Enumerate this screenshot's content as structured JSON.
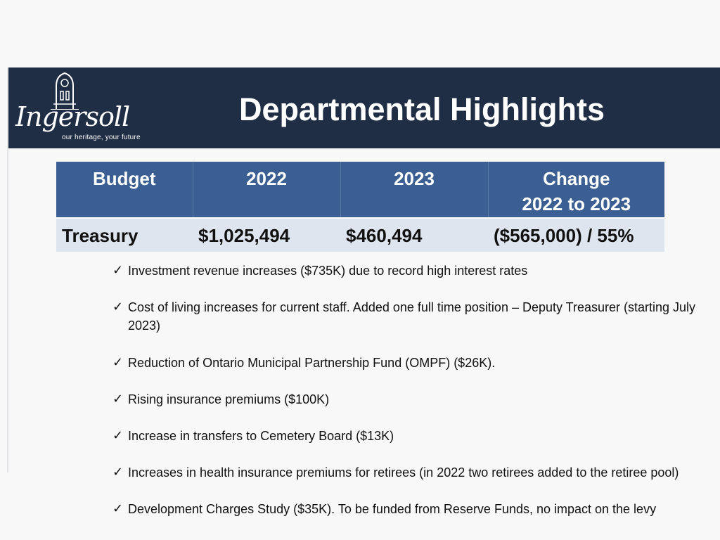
{
  "logo": {
    "name": "Ingersoll",
    "tagline": "our heritage, your future"
  },
  "title": "Departmental Highlights",
  "table": {
    "headers": [
      "Budget",
      "2022",
      "2023",
      "Change\n2022 to 2023"
    ],
    "header_change_line1": "Change",
    "header_change_line2": "2022 to 2023",
    "row": {
      "budget": "Treasury",
      "y2022": "$1,025,494",
      "y2023": "$460,494",
      "change": "($565,000) / 55%"
    }
  },
  "bullets": [
    {
      "text": "Investment revenue increases ($735K) due to record high interest rates"
    },
    {
      "text": "Cost of living increases for current staff. Added one full time position – Deputy Treasurer (starting July 2023)"
    },
    {
      "text": "Reduction of Ontario Municipal Partnership Fund (OMPF) ($26K)."
    },
    {
      "text": "Rising insurance premiums ($100K)"
    },
    {
      "text": "Increase in transfers to Cemetery Board ($13K)"
    },
    {
      "text": "Increases in health insurance premiums for retirees (in 2022 two retirees added to the retiree pool)"
    },
    {
      "text": "Development Charges Study ($35K). To be funded from Reserve Funds, no impact on the levy"
    }
  ],
  "check_glyph": "✓",
  "colors": {
    "banner": "#1f2d45",
    "table_header": "#3b5f92",
    "table_row": "#dfe5ef"
  }
}
